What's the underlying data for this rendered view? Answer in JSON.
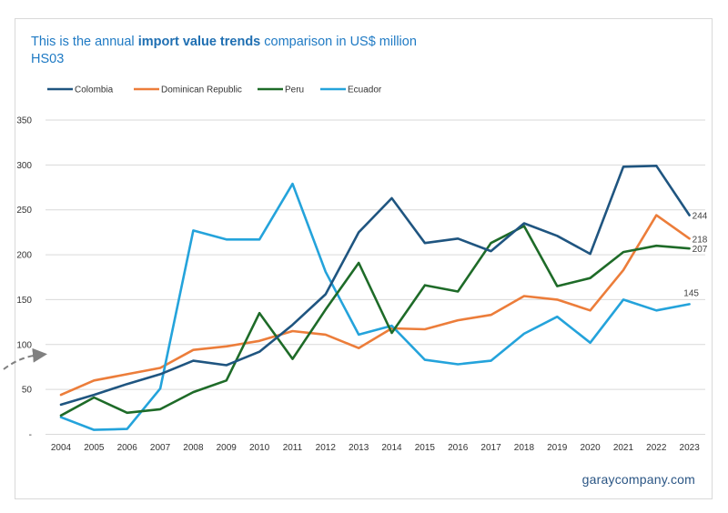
{
  "title": {
    "prefix": "This is the annual ",
    "emphasis": "import value trends",
    "suffix": " comparison in US$ million",
    "line2": "HS03"
  },
  "brand": "garaycompany.com",
  "chart_data": {
    "type": "line",
    "title": "This is the annual import value trends comparison in US$ million HS03",
    "xlabel": "",
    "ylabel": "",
    "ylim": [
      0,
      350
    ],
    "yticks": [
      0,
      50,
      100,
      150,
      200,
      250,
      300,
      350
    ],
    "ytick_labels": [
      "-",
      "50",
      "100",
      "150",
      "200",
      "250",
      "300",
      "350"
    ],
    "grid": true,
    "legend_position": "top-left",
    "categories": [
      "2004",
      "2005",
      "2006",
      "2007",
      "2008",
      "2009",
      "2010",
      "2011",
      "2012",
      "2013",
      "2014",
      "2015",
      "2016",
      "2017",
      "2018",
      "2019",
      "2020",
      "2021",
      "2022",
      "2023"
    ],
    "series": [
      {
        "name": "Colombia",
        "color": "#1f5580",
        "values": [
          33,
          44,
          56,
          67,
          82,
          77,
          92,
          122,
          156,
          225,
          263,
          213,
          218,
          204,
          235,
          221,
          201,
          298,
          299,
          244
        ]
      },
      {
        "name": "Dominican Republic",
        "color": "#ec7d3a",
        "values": [
          44,
          60,
          67,
          74,
          94,
          98,
          104,
          115,
          111,
          96,
          118,
          117,
          127,
          133,
          154,
          150,
          138,
          183,
          244,
          218
        ]
      },
      {
        "name": "Peru",
        "color": "#1e6b28",
        "values": [
          21,
          41,
          24,
          28,
          47,
          60,
          135,
          84,
          139,
          191,
          113,
          166,
          159,
          213,
          232,
          165,
          174,
          203,
          210,
          207
        ]
      },
      {
        "name": "Ecuador",
        "color": "#24a3db",
        "values": [
          19,
          5,
          6,
          51,
          227,
          217,
          217,
          279,
          181,
          111,
          121,
          83,
          78,
          82,
          112,
          131,
          102,
          150,
          138,
          145
        ]
      }
    ],
    "end_labels": [
      {
        "series": "Colombia",
        "text": "244"
      },
      {
        "series": "Dominican Republic",
        "text": "218"
      },
      {
        "series": "Peru",
        "text": "207"
      },
      {
        "series": "Ecuador",
        "text": "145"
      }
    ]
  }
}
